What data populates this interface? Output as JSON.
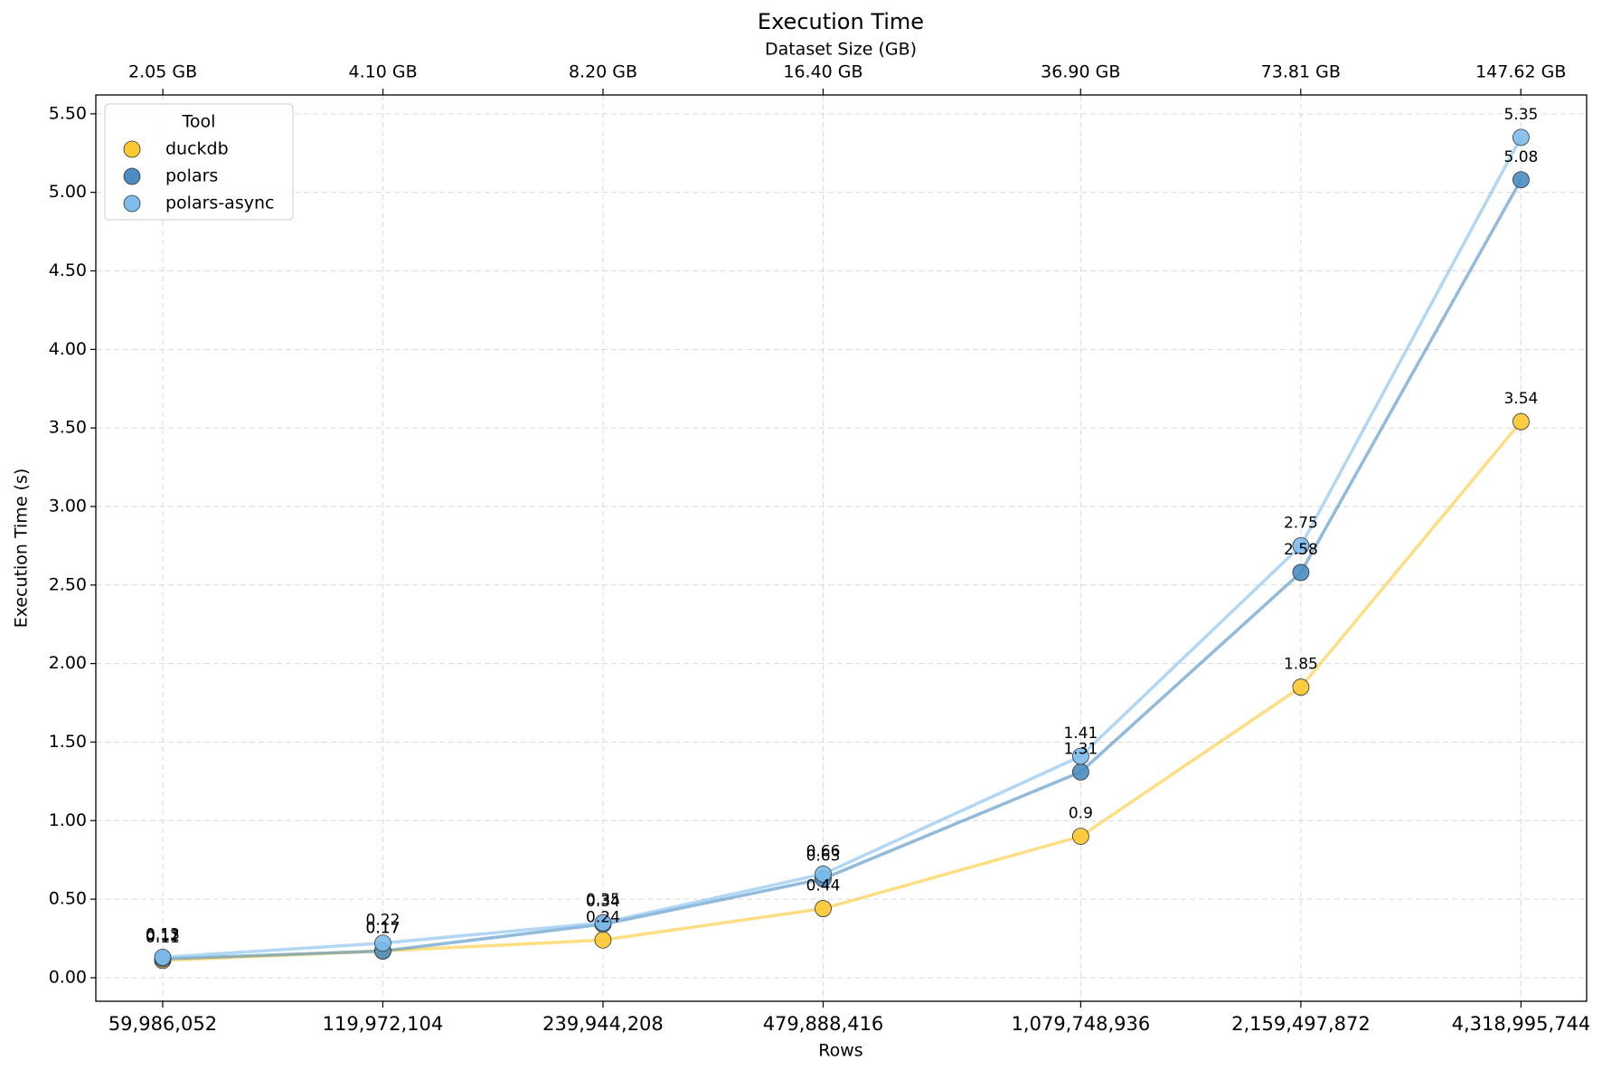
{
  "chart_data": {
    "type": "line",
    "title": "Execution Time",
    "xlabel": "Rows",
    "ylabel": "Execution Time (s)",
    "x2label": "Dataset Size (GB)",
    "xscale": "log",
    "grid": true,
    "legend_title": "Tool",
    "legend_position": "upper left",
    "x": [
      59986052,
      119972104,
      239944208,
      479888416,
      1079748936,
      2159497872,
      4318995744
    ],
    "xlim": [
      48600000,
      5310000000
    ],
    "xticks": [
      {
        "value": 59986052,
        "label": "59,986,052"
      },
      {
        "value": 119972104,
        "label": "119,972,104"
      },
      {
        "value": 239944208,
        "label": "239,944,208"
      },
      {
        "value": 479888416,
        "label": "479,888,416"
      },
      {
        "value": 1079748936,
        "label": "1,079,748,936"
      },
      {
        "value": 2159497872,
        "label": "2,159,497,872"
      },
      {
        "value": 4318995744,
        "label": "4,318,995,744"
      }
    ],
    "x2lim": [
      1.66,
      181.6
    ],
    "x2ticks": [
      {
        "value": 2.05,
        "label": "2.05 GB"
      },
      {
        "value": 4.1,
        "label": "4.10 GB"
      },
      {
        "value": 8.2,
        "label": "8.20 GB"
      },
      {
        "value": 16.4,
        "label": "16.40 GB"
      },
      {
        "value": 36.9,
        "label": "36.90 GB"
      },
      {
        "value": 73.81,
        "label": "73.81 GB"
      },
      {
        "value": 147.62,
        "label": "147.62 GB"
      }
    ],
    "ylim": [
      -0.15,
      5.62
    ],
    "yticks": [
      {
        "value": 0,
        "label": "0.00"
      },
      {
        "value": 0.5,
        "label": "0.50"
      },
      {
        "value": 1,
        "label": "1.00"
      },
      {
        "value": 1.5,
        "label": "1.50"
      },
      {
        "value": 2,
        "label": "2.00"
      },
      {
        "value": 2.5,
        "label": "2.50"
      },
      {
        "value": 3,
        "label": "3.00"
      },
      {
        "value": 3.5,
        "label": "3.50"
      },
      {
        "value": 4,
        "label": "4.00"
      },
      {
        "value": 4.5,
        "label": "4.50"
      },
      {
        "value": 5,
        "label": "5.00"
      },
      {
        "value": 5.5,
        "label": "5.50"
      }
    ],
    "series": [
      {
        "name": "duckdb",
        "color": "#fcc830",
        "values": [
          0.11,
          0.17,
          0.24,
          0.44,
          0.9,
          1.85,
          3.54
        ]
      },
      {
        "name": "polars",
        "color": "#4a8cc2",
        "values": [
          0.12,
          0.17,
          0.34,
          0.63,
          1.31,
          2.58,
          5.08
        ]
      },
      {
        "name": "polars-async",
        "color": "#7dbcec",
        "values": [
          0.13,
          0.22,
          0.35,
          0.66,
          1.41,
          2.75,
          5.35
        ]
      }
    ]
  }
}
